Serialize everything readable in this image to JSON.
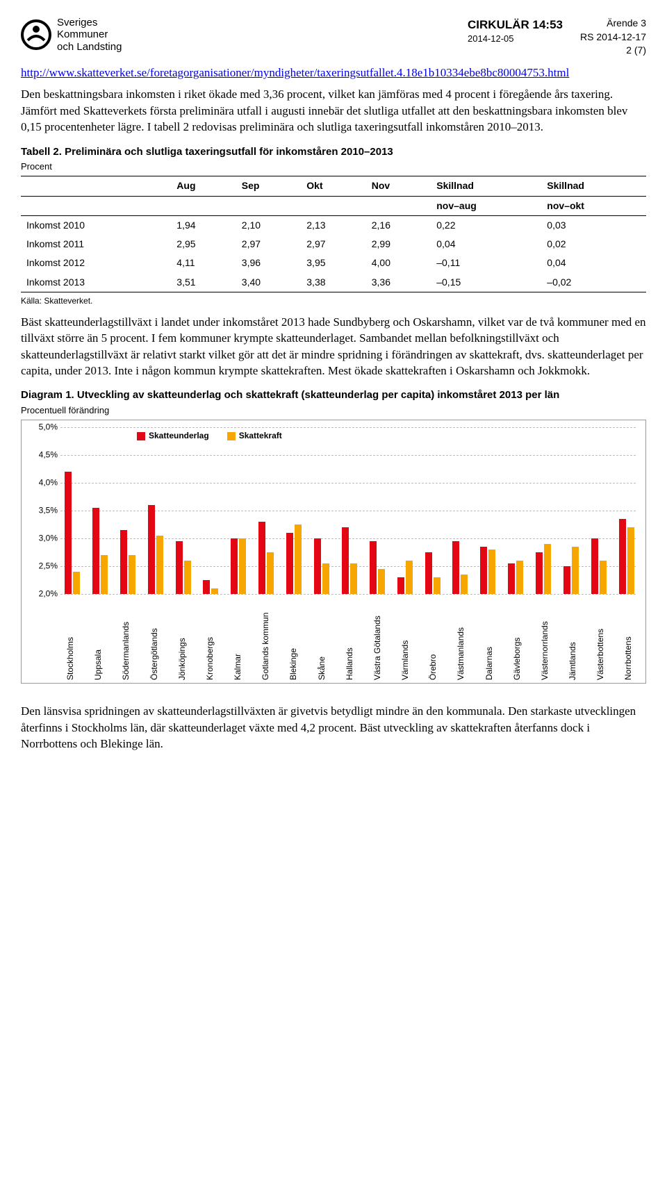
{
  "header": {
    "org_line1": "Sveriges",
    "org_line2": "Kommuner",
    "org_line3": "och Landsting",
    "title": "CIRKULÄR 14:53",
    "date": "2014-12-05",
    "topright1": "Ärende 3",
    "topright2": "RS 2014-12-17",
    "topright3": "2 (7)"
  },
  "link": "http://www.skatteverket.se/foretagorganisationer/myndigheter/taxeringsutfallet.4.18e1b10334ebe8bc80004753.html",
  "p1": "Den beskattningsbara inkomsten i riket ökade med 3,36 procent, vilket kan jämföras med 4 procent i föregående års taxering. Jämfört med Skatteverkets första preliminära utfall i augusti innebär det slutliga utfallet att den beskattningsbara inkomsten blev 0,15 procentenheter lägre. I tabell 2 redovisas preliminära och slutliga taxeringsutfall inkomståren 2010–2013.",
  "table": {
    "title": "Tabell 2. Preliminära och slutliga taxeringsutfall för inkomståren 2010–2013",
    "subtitle": "Procent",
    "head": [
      "",
      "Aug",
      "Sep",
      "Okt",
      "Nov",
      "Skillnad",
      "Skillnad"
    ],
    "head2": [
      "",
      "",
      "",
      "",
      "",
      "nov–aug",
      "nov–okt"
    ],
    "rows": [
      [
        "Inkomst 2010",
        "1,94",
        "2,10",
        "2,13",
        "2,16",
        "0,22",
        "0,03"
      ],
      [
        "Inkomst 2011",
        "2,95",
        "2,97",
        "2,97",
        "2,99",
        "0,04",
        "0,02"
      ],
      [
        "Inkomst 2012",
        "4,11",
        "3,96",
        "3,95",
        "4,00",
        "–0,11",
        "0,04"
      ],
      [
        "Inkomst 2013",
        "3,51",
        "3,40",
        "3,38",
        "3,36",
        "–0,15",
        "–0,02"
      ]
    ],
    "source": "Källa: Skatteverket."
  },
  "p2": "Bäst skatteunderlagstillväxt i landet under inkomståret 2013 hade Sundbyberg och Oskarshamn, vilket var de två kommuner med en tillväxt större än 5 procent. I fem kommuner krympte skatteunderlaget. Sambandet mellan befolkningstillväxt och skatteunderlagstillväxt är relativt starkt vilket gör att det är mindre spridning i förändringen av skattekraft, dvs. skatteunderlaget per capita, under 2013. Inte i någon kommun krympte skattekraften. Mest ökade skattekraften i Oskarshamn och Jokkmokk.",
  "diagram": {
    "title": "Diagram 1. Utveckling av skatteunderlag och skattekraft (skatteunderlag per capita) inkomståret 2013 per län",
    "subtitle": "Procentuell förändring",
    "legend": [
      "Skatteunderlag",
      "Skattekraft"
    ],
    "colors": {
      "a": "#e30613",
      "b": "#f7a600",
      "grid": "#bbbbbb",
      "border": "#999999"
    },
    "ymin": 2.0,
    "ymax": 5.0,
    "yticks": [
      "5,0%",
      "4,5%",
      "4,0%",
      "3,5%",
      "3,0%",
      "2,5%",
      "2,0%"
    ],
    "series": [
      {
        "label": "Stockholms",
        "a": 4.2,
        "b": 2.4
      },
      {
        "label": "Uppsala",
        "a": 3.55,
        "b": 2.7
      },
      {
        "label": "Södermanlands",
        "a": 3.15,
        "b": 2.7
      },
      {
        "label": "Östergötlands",
        "a": 3.6,
        "b": 3.05
      },
      {
        "label": "Jönköpings",
        "a": 2.95,
        "b": 2.6
      },
      {
        "label": "Kronobergs",
        "a": 2.25,
        "b": 2.1
      },
      {
        "label": "Kalmar",
        "a": 3.0,
        "b": 3.0
      },
      {
        "label": "Gotlands kommun",
        "a": 3.3,
        "b": 2.75
      },
      {
        "label": "Blekinge",
        "a": 3.1,
        "b": 3.25
      },
      {
        "label": "Skåne",
        "a": 3.0,
        "b": 2.55
      },
      {
        "label": "Hallands",
        "a": 3.2,
        "b": 2.55
      },
      {
        "label": "Västra Götalands",
        "a": 2.95,
        "b": 2.45
      },
      {
        "label": "Värmlands",
        "a": 2.3,
        "b": 2.6
      },
      {
        "label": "Örebro",
        "a": 2.75,
        "b": 2.3
      },
      {
        "label": "Västmanlands",
        "a": 2.95,
        "b": 2.35
      },
      {
        "label": "Dalarnas",
        "a": 2.85,
        "b": 2.8
      },
      {
        "label": "Gävleborgs",
        "a": 2.55,
        "b": 2.6
      },
      {
        "label": "Västernorrlands",
        "a": 2.75,
        "b": 2.9
      },
      {
        "label": "Jämtlands",
        "a": 2.5,
        "b": 2.85
      },
      {
        "label": "Västerbottens",
        "a": 3.0,
        "b": 2.6
      },
      {
        "label": "Norrbottens",
        "a": 3.35,
        "b": 3.2
      }
    ]
  },
  "p3": "Den länsvisa spridningen av skatteunderlagstillväxten är givetvis betydligt mindre än den kommunala. Den starkaste utvecklingen återfinns i Stockholms län, där skatteunderlaget växte med 4,2 procent. Bäst utveckling av skattekraften återfanns dock i Norrbottens och Blekinge län."
}
